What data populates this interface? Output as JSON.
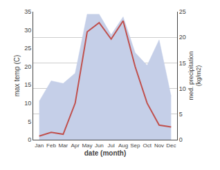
{
  "chart_data": {
    "type": "line",
    "xlabel": "date (month)",
    "ylabel": "max temp (C)",
    "y2label": "med. precipitation\n(kg/m2)",
    "categories": [
      "Jan",
      "Feb",
      "Mar",
      "Apr",
      "May",
      "Jun",
      "Jul",
      "Aug",
      "Sep",
      "Oct",
      "Nov",
      "Dec"
    ],
    "series": [
      {
        "type": "area",
        "axis": "y2",
        "color": "#c5cfe8",
        "values": [
          7.5,
          11.5,
          11.0,
          13.0,
          24.5,
          24.5,
          20.5,
          24.0,
          17.0,
          14.5,
          19.5,
          8.5
        ]
      },
      {
        "type": "line",
        "color": "#c0504d",
        "values": [
          1.0,
          2.0,
          1.5,
          10.0,
          29.5,
          32.0,
          27.5,
          32.5,
          20.0,
          10.0,
          4.0,
          3.5
        ]
      }
    ],
    "ylim": [
      0,
      35
    ],
    "yticks": [
      0,
      5,
      10,
      15,
      20,
      25,
      30,
      35
    ],
    "y2lim": [
      0,
      25
    ],
    "y2ticks": [
      0,
      5,
      10,
      15,
      20,
      25
    ],
    "grid": true
  }
}
